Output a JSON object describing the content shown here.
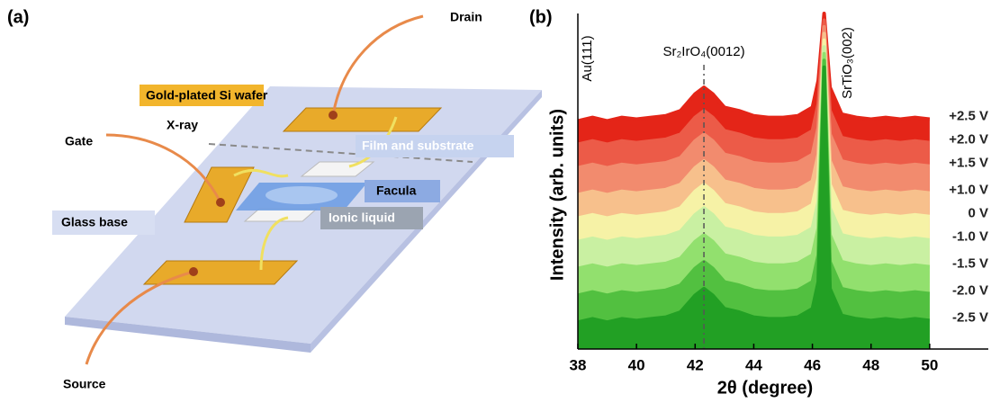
{
  "panel_a": {
    "label": "(a)",
    "drain": "Drain",
    "gold": "Gold-plated Si wafer",
    "xray": "X-ray",
    "gate": "Gate",
    "film": "Film and substrate",
    "facula": "Facula",
    "glass": "Glass base",
    "ionic": "Ionic liquid",
    "source": "Source"
  },
  "chart_data": {
    "type": "line",
    "panel_label": "(b)",
    "x_label": "2θ (degree)",
    "y_label": "Intensity (arb. units)",
    "annotations": {
      "au": "Au(111)",
      "sto": "SrTiO₃(002)",
      "sio": "Sr₂IrO₄(0012)"
    },
    "ref_line_x": 42.3,
    "xlim": [
      38,
      52
    ],
    "xticks": [
      38,
      40,
      42,
      44,
      46,
      48,
      50
    ],
    "ylim": [
      0,
      100
    ],
    "x": [
      38,
      38.5,
      39,
      39.5,
      40,
      40.5,
      41,
      41.5,
      42,
      42.3,
      42.6,
      43,
      43.5,
      44,
      44.5,
      45,
      45.5,
      46,
      46.2,
      46.4,
      46.6,
      47,
      47.5,
      48,
      48.5,
      49,
      49.5,
      50
    ],
    "series": [
      {
        "name": "+2.5 V",
        "color": "#e42518",
        "values": [
          68,
          69,
          68,
          69,
          68.5,
          69,
          69.5,
          71,
          76,
          78,
          76,
          72,
          71,
          69.5,
          69,
          69,
          69.5,
          72,
          80,
          100,
          78,
          70,
          69,
          68.5,
          69,
          68.5,
          69,
          68.5
        ]
      },
      {
        "name": "+2.0 V",
        "color": "#ec5b48",
        "values": [
          61,
          62,
          61,
          62,
          61.5,
          62,
          62.5,
          64,
          69,
          71,
          69,
          65,
          64,
          62.5,
          62,
          62,
          62.5,
          65,
          73,
          98,
          71,
          63,
          62,
          61.5,
          62,
          61.5,
          62,
          61.5
        ]
      },
      {
        "name": "+1.5 V",
        "color": "#f28b6e",
        "values": [
          54,
          55,
          54,
          55,
          54.5,
          55,
          55.5,
          57,
          62,
          64,
          62,
          58,
          57,
          55.5,
          55,
          55,
          55.5,
          58,
          66,
          96,
          64,
          56,
          55,
          54.5,
          55,
          54.5,
          55,
          54.5
        ]
      },
      {
        "name": "+1.0 V",
        "color": "#f7c08c",
        "values": [
          46,
          47,
          46,
          47,
          46.5,
          47,
          47.5,
          49,
          54,
          56,
          54,
          50,
          49,
          47.5,
          47,
          47,
          47.5,
          50,
          58,
          94,
          56,
          48,
          47,
          46.5,
          47,
          46.5,
          47,
          46.5
        ]
      },
      {
        "name": "0 V",
        "color": "#f6f2a6",
        "values": [
          39,
          40,
          39,
          40,
          39.5,
          40,
          40.5,
          42,
          47,
          49,
          47,
          43,
          42,
          40.5,
          40,
          40,
          40.5,
          43,
          51,
          92,
          49,
          41,
          40,
          39.5,
          40,
          39.5,
          40,
          39.5
        ]
      },
      {
        "name": "-1.0 V",
        "color": "#c9f0a2",
        "values": [
          32,
          33,
          32,
          33,
          32.5,
          33,
          33.5,
          35,
          40,
          42,
          40,
          36,
          35,
          33.5,
          33,
          33,
          33.5,
          36,
          44,
          90,
          42,
          34,
          33,
          32.5,
          33,
          32.5,
          33,
          32.5
        ]
      },
      {
        "name": "-1.5 V",
        "color": "#92e06e",
        "values": [
          24,
          25,
          24,
          25,
          24.5,
          25,
          25.5,
          27,
          32,
          34,
          32,
          28,
          27,
          25.5,
          25,
          25,
          25.5,
          28,
          36,
          88,
          34,
          26,
          25,
          24.5,
          25,
          24.5,
          25,
          24.5
        ]
      },
      {
        "name": "-2.0 V",
        "color": "#52c040",
        "values": [
          16,
          17,
          16,
          17,
          16.5,
          17,
          17.5,
          19,
          24,
          26,
          24,
          20,
          19,
          17.5,
          17,
          17,
          17.5,
          20,
          28,
          86,
          26,
          18,
          17,
          16.5,
          17,
          16.5,
          17,
          16.5
        ]
      },
      {
        "name": "-2.5 V",
        "color": "#22a024",
        "values": [
          8,
          9,
          8,
          9,
          8.5,
          9,
          9.5,
          11,
          16,
          18,
          16,
          12,
          11,
          9.5,
          9,
          9,
          9.5,
          12,
          20,
          84,
          18,
          10,
          9,
          8.5,
          9,
          8.5,
          9,
          8.5
        ]
      }
    ]
  }
}
